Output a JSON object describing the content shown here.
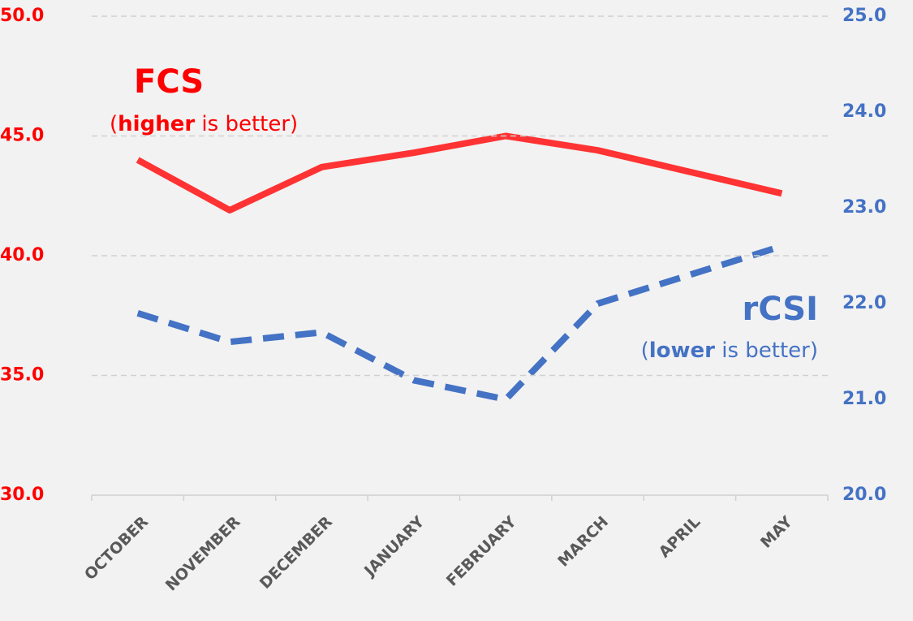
{
  "chart_data": {
    "type": "line",
    "categories": [
      "OCTOBER",
      "NOVEMBER",
      "DECEMBER",
      "JANUARY",
      "FEBRUARY",
      "MARCH",
      "APRIL",
      "MAY"
    ],
    "series": [
      {
        "name": "FCS",
        "color": "#ff3333",
        "values": [
          44.0,
          41.9,
          43.7,
          44.3,
          45.0,
          44.4,
          43.5,
          42.6
        ]
      },
      {
        "name": "rCSI",
        "color": "#4472c4",
        "axis": "y2",
        "dashed": true,
        "values": [
          21.9,
          21.6,
          21.7,
          21.2,
          21.0,
          22.0,
          22.3,
          22.6
        ]
      }
    ],
    "annotations": [
      {
        "prefix": "(",
        "bold": "higher",
        "suffix": " is better)"
      },
      {
        "prefix": "(",
        "bold": "lower",
        "suffix": " is better)"
      }
    ],
    "ylim": [
      30,
      50
    ],
    "yticks": [
      {
        "value": 30,
        "label": "30.0"
      },
      {
        "value": 35,
        "label": "35.0"
      },
      {
        "value": 40,
        "label": "40.0"
      },
      {
        "value": 45,
        "label": "45.0"
      },
      {
        "value": 50,
        "label": "50.0"
      }
    ],
    "y2lim": [
      20,
      25
    ],
    "y2ticks": [
      {
        "value": 20,
        "label": "20.0"
      },
      {
        "value": 21,
        "label": "21.0"
      },
      {
        "value": 22,
        "label": "22.0"
      },
      {
        "value": 23,
        "label": "23.0"
      },
      {
        "value": 24,
        "label": "24.0"
      },
      {
        "value": 25,
        "label": "25.0"
      }
    ],
    "ytick_color": "#ff0000",
    "y2tick_color": "#4472c4",
    "grid": true
  }
}
